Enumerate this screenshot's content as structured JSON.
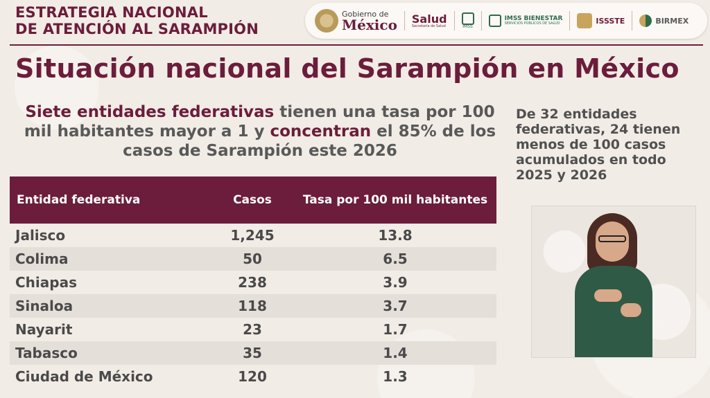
{
  "header": {
    "strategy_line1": "ESTRATEGIA NACIONAL",
    "strategy_line2": "DE ATENCIÓN AL SARAMPIÓN"
  },
  "logos": {
    "gobierno_small": "Gobierno de",
    "gobierno_big": "México",
    "salud": "Salud",
    "salud_small": "Secretaría de Salud",
    "imss": "IMSS",
    "imss_bienestar": "IMSS BIENESTAR",
    "imss_bienestar_small": "SERVICIOS PÚBLICOS DE SALUD",
    "issste": "ISSSTE",
    "birmex": "BIRMEX"
  },
  "main_title": "Situación nacional del Sarampión en México",
  "subtitle": {
    "part1": "Siete entidades federativas",
    "part2": " tienen una tasa por 100 mil habitantes mayor a 1 y ",
    "part3": "concentran",
    "part4": " el 85% de los casos de Sarampión este 2026"
  },
  "side_note": "De 32 entidades federativas, 24 tienen menos de 100 casos acumulados en todo 2025 y 2026",
  "table": {
    "headers": [
      "Entidad federativa",
      "Casos",
      "Tasa por 100 mil habitantes"
    ],
    "rows": [
      [
        "Jalisco",
        "1,245",
        "13.8"
      ],
      [
        "Colima",
        "50",
        "6.5"
      ],
      [
        "Chiapas",
        "238",
        "3.9"
      ],
      [
        "Sinaloa",
        "118",
        "3.7"
      ],
      [
        "Nayarit",
        "23",
        "1.7"
      ],
      [
        "Tabasco",
        "35",
        "1.4"
      ],
      [
        "Ciudad de México",
        "120",
        "1.3"
      ]
    ]
  },
  "colors": {
    "brand": "#6b1d3b",
    "text": "#4a4a4a",
    "background": "#f2ece6",
    "row_alt": "#e5dfda",
    "green": "#2f6b4a",
    "gold": "#c9a45c"
  }
}
